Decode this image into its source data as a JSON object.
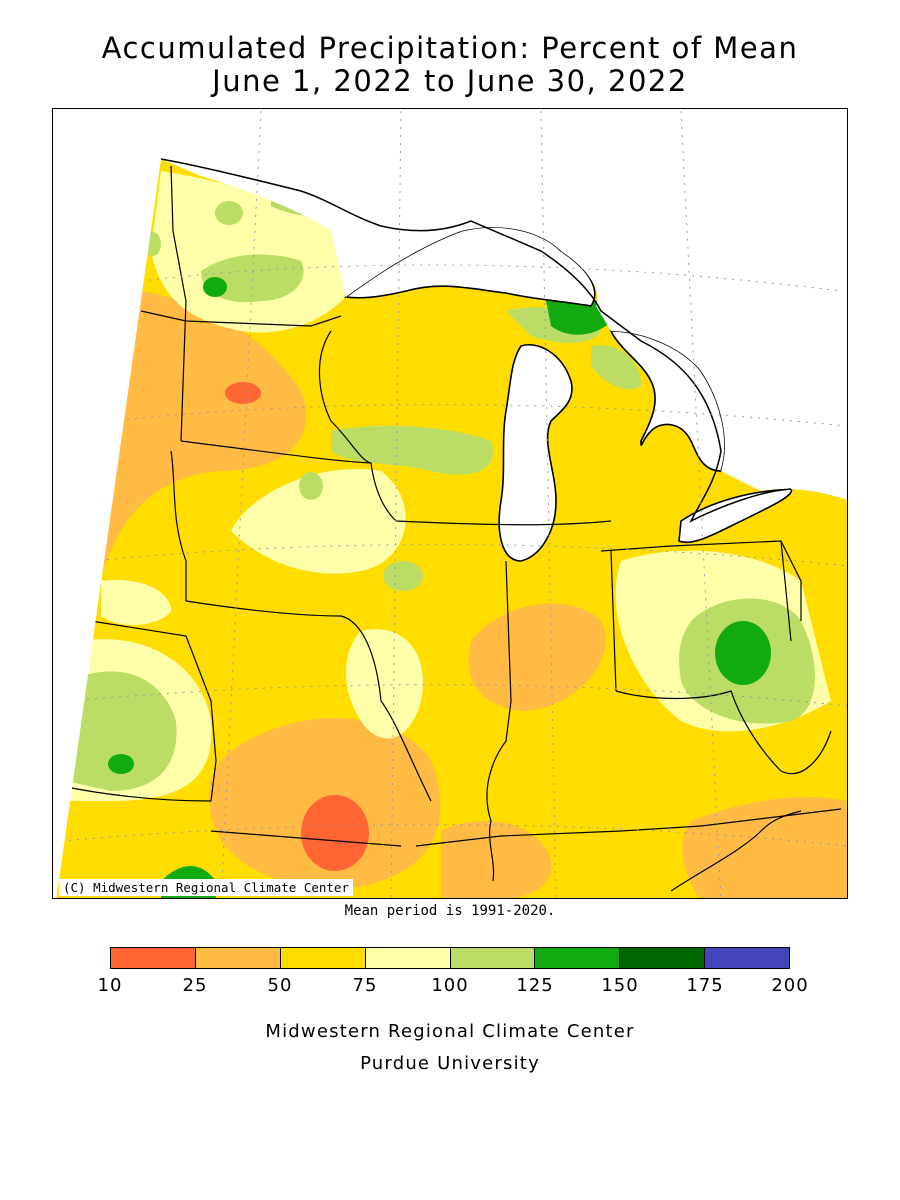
{
  "title": {
    "line1": "Accumulated Precipitation: Percent of Mean",
    "line2": "June 1, 2022 to June 30, 2022"
  },
  "map": {
    "credit": "(C) Midwestern Regional Climate Center",
    "mean_note": "Mean period is 1991-2020."
  },
  "legend": {
    "bins": [
      {
        "from": 10,
        "to": 25,
        "color": "#ff6633"
      },
      {
        "from": 25,
        "to": 50,
        "color": "#ffbb44"
      },
      {
        "from": 50,
        "to": 75,
        "color": "#ffdd00"
      },
      {
        "from": 75,
        "to": 100,
        "color": "#ffffaa"
      },
      {
        "from": 100,
        "to": 125,
        "color": "#bbdd66"
      },
      {
        "from": 125,
        "to": 150,
        "color": "#11aa11"
      },
      {
        "from": 150,
        "to": 175,
        "color": "#006600"
      },
      {
        "from": 175,
        "to": 200,
        "color": "#4444bb"
      }
    ],
    "ticks": [
      "10",
      "25",
      "50",
      "75",
      "100",
      "125",
      "150",
      "175",
      "200"
    ]
  },
  "footer": {
    "line1": "Midwestern Regional Climate Center",
    "line2": "Purdue University"
  }
}
